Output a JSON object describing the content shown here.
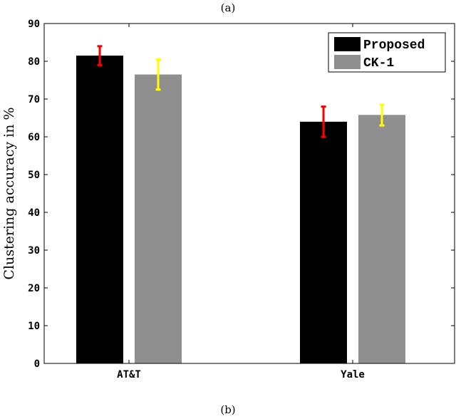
{
  "captions": {
    "top": "(a)",
    "bottom": "(b)"
  },
  "chart_data": {
    "type": "bar",
    "title": "",
    "xlabel": "",
    "ylabel": "Clustering accuracy in %",
    "ylim": [
      0,
      90
    ],
    "yticks": [
      0,
      10,
      20,
      30,
      40,
      50,
      60,
      70,
      80,
      90
    ],
    "grid": false,
    "legend_position": "upper right",
    "categories": [
      "AT&T",
      "Yale"
    ],
    "series": [
      {
        "name": "Proposed",
        "color": "#000000",
        "error_color": "#ff0000",
        "values": [
          81.5,
          64.0
        ],
        "error_low": [
          79.0,
          60.0
        ],
        "error_high": [
          84.0,
          68.0
        ]
      },
      {
        "name": "CK-1",
        "color": "#8f8f8f",
        "error_color": "#ffff00",
        "values": [
          76.5,
          65.8
        ],
        "error_low": [
          72.5,
          63.0
        ],
        "error_high": [
          80.5,
          68.5
        ]
      }
    ]
  }
}
